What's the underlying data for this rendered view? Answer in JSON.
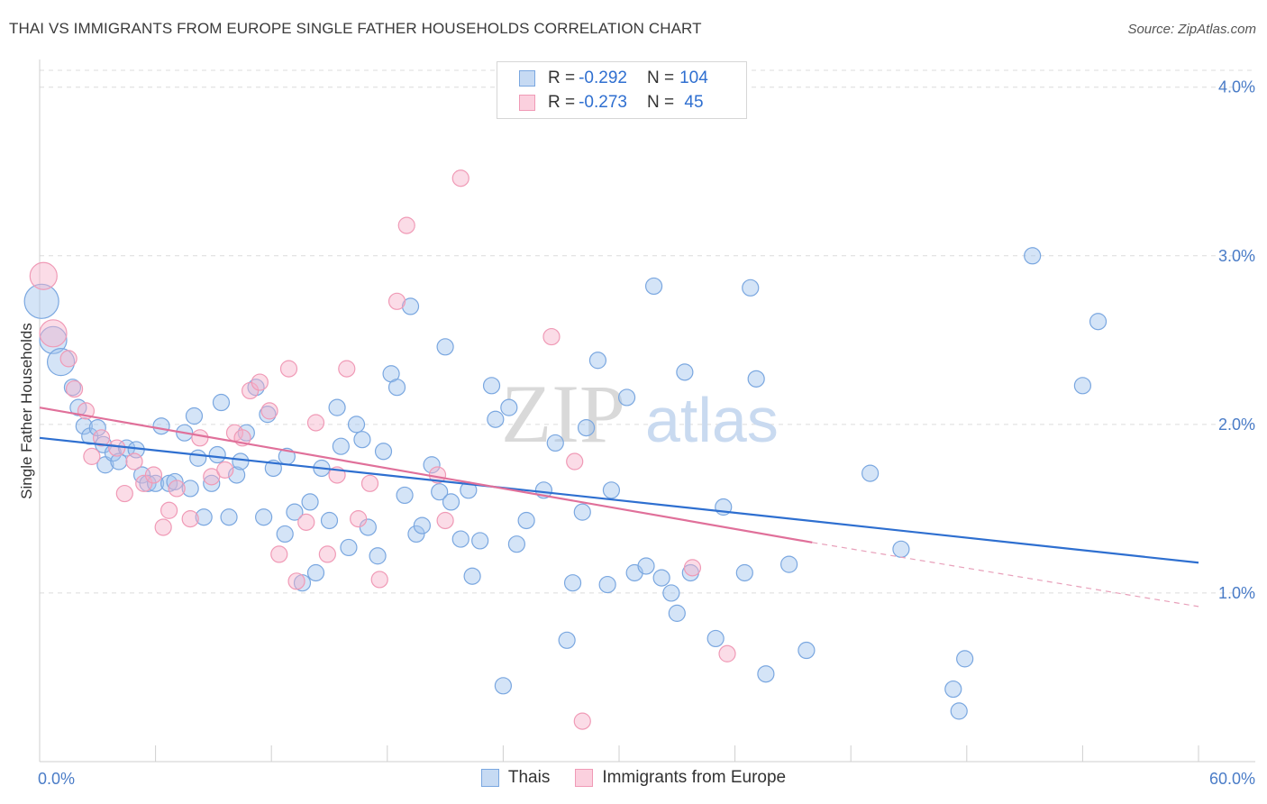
{
  "title": "THAI VS IMMIGRANTS FROM EUROPE SINGLE FATHER HOUSEHOLDS CORRELATION CHART",
  "source": "Source: ZipAtlas.com",
  "watermark": {
    "zip": "ZIP",
    "atlas": "atlas"
  },
  "legend": {
    "rows": [
      {
        "r_label": "R = ",
        "r_value": "-0.292",
        "n_label": "N = ",
        "n_value": "104",
        "color": "#7aa7e0"
      },
      {
        "r_label": "R = ",
        "r_value": "-0.273",
        "n_label": "N = ",
        "n_value": " 45",
        "color": "#f09ab6"
      }
    ]
  },
  "bottom_legend": [
    {
      "label": "Thais",
      "color": "#7aa7e0"
    },
    {
      "label": "Immigrants from Europe",
      "color": "#f09ab6"
    }
  ],
  "chart_data": {
    "type": "scatter",
    "title": "THAI VS IMMIGRANTS FROM EUROPE SINGLE FATHER HOUSEHOLDS CORRELATION CHART",
    "ylabel": "Single Father Households",
    "xlabel": "",
    "xlim": [
      0,
      60
    ],
    "ylim": [
      0,
      4.1
    ],
    "x_tick_labels": [
      {
        "x": 0,
        "label": "0.0%"
      },
      {
        "x": 60,
        "label": "60.0%"
      }
    ],
    "y_ticks": [
      {
        "y": 1,
        "label": "1.0%"
      },
      {
        "y": 2,
        "label": "2.0%"
      },
      {
        "y": 3,
        "label": "3.0%"
      },
      {
        "y": 4,
        "label": "4.0%"
      }
    ],
    "grid": "horizontal-dashed",
    "legend_position": "top-center",
    "series": [
      {
        "name": "Thais",
        "color": "#7aa7e0",
        "trend": {
          "x0": 0,
          "y0": 1.92,
          "x1": 60,
          "y1": 1.18
        },
        "points": [
          [
            0.1,
            2.73,
            3
          ],
          [
            0.7,
            2.5,
            2
          ],
          [
            1.1,
            2.37,
            2
          ],
          [
            1.7,
            2.22,
            1
          ],
          [
            2.0,
            2.1,
            1
          ],
          [
            2.3,
            1.99,
            1
          ],
          [
            2.6,
            1.93,
            1
          ],
          [
            3.0,
            1.98,
            1
          ],
          [
            3.3,
            1.88,
            1
          ],
          [
            3.4,
            1.76,
            1
          ],
          [
            3.8,
            1.83,
            1
          ],
          [
            4.1,
            1.78,
            1
          ],
          [
            4.5,
            1.86,
            1
          ],
          [
            5.0,
            1.85,
            1
          ],
          [
            5.3,
            1.7,
            1
          ],
          [
            5.6,
            1.65,
            1
          ],
          [
            6.0,
            1.65,
            1
          ],
          [
            6.3,
            1.99,
            1
          ],
          [
            6.7,
            1.65,
            1
          ],
          [
            7.0,
            1.66,
            1
          ],
          [
            7.5,
            1.95,
            1
          ],
          [
            7.8,
            1.62,
            1
          ],
          [
            8.0,
            2.05,
            1
          ],
          [
            8.2,
            1.8,
            1
          ],
          [
            8.5,
            1.45,
            1
          ],
          [
            8.9,
            1.65,
            1
          ],
          [
            9.2,
            1.82,
            1
          ],
          [
            9.4,
            2.13,
            1
          ],
          [
            9.8,
            1.45,
            1
          ],
          [
            10.2,
            1.7,
            1
          ],
          [
            10.4,
            1.78,
            1
          ],
          [
            10.7,
            1.95,
            1
          ],
          [
            11.2,
            2.22,
            1
          ],
          [
            11.6,
            1.45,
            1
          ],
          [
            11.8,
            2.06,
            1
          ],
          [
            12.1,
            1.74,
            1
          ],
          [
            12.7,
            1.35,
            1
          ],
          [
            12.8,
            1.81,
            1
          ],
          [
            13.2,
            1.48,
            1
          ],
          [
            13.6,
            1.06,
            1
          ],
          [
            14.0,
            1.54,
            1
          ],
          [
            14.3,
            1.12,
            1
          ],
          [
            14.6,
            1.74,
            1
          ],
          [
            15.0,
            1.43,
            1
          ],
          [
            15.4,
            2.1,
            1
          ],
          [
            15.6,
            1.87,
            1
          ],
          [
            16.0,
            1.27,
            1
          ],
          [
            16.4,
            2.0,
            1
          ],
          [
            16.7,
            1.91,
            1
          ],
          [
            17.0,
            1.39,
            1
          ],
          [
            17.5,
            1.22,
            1
          ],
          [
            17.8,
            1.84,
            1
          ],
          [
            18.2,
            2.3,
            1
          ],
          [
            18.5,
            2.22,
            1
          ],
          [
            18.9,
            1.58,
            1
          ],
          [
            19.2,
            2.7,
            1
          ],
          [
            19.5,
            1.35,
            1
          ],
          [
            19.8,
            1.4,
            1
          ],
          [
            20.3,
            1.76,
            1
          ],
          [
            20.7,
            1.6,
            1
          ],
          [
            21.0,
            2.46,
            1
          ],
          [
            21.3,
            1.54,
            1
          ],
          [
            21.8,
            1.32,
            1
          ],
          [
            22.2,
            1.61,
            1
          ],
          [
            22.4,
            1.1,
            1
          ],
          [
            22.8,
            1.31,
            1
          ],
          [
            23.4,
            2.23,
            1
          ],
          [
            23.6,
            2.03,
            1
          ],
          [
            24.0,
            0.45,
            1
          ],
          [
            24.3,
            2.1,
            1
          ],
          [
            24.7,
            1.29,
            1
          ],
          [
            25.2,
            1.43,
            1
          ],
          [
            26.1,
            1.61,
            1
          ],
          [
            26.7,
            1.89,
            1
          ],
          [
            27.3,
            0.72,
            1
          ],
          [
            27.6,
            1.06,
            1
          ],
          [
            28.1,
            1.48,
            1
          ],
          [
            28.3,
            1.98,
            1
          ],
          [
            28.9,
            2.38,
            1
          ],
          [
            29.4,
            1.05,
            1
          ],
          [
            29.6,
            1.61,
            1
          ],
          [
            30.4,
            2.16,
            1
          ],
          [
            30.8,
            1.12,
            1
          ],
          [
            31.4,
            1.16,
            1
          ],
          [
            31.8,
            2.82,
            1
          ],
          [
            32.2,
            1.09,
            1
          ],
          [
            32.7,
            1.0,
            1
          ],
          [
            33.0,
            0.88,
            1
          ],
          [
            33.4,
            2.31,
            1
          ],
          [
            33.7,
            1.12,
            1
          ],
          [
            35.0,
            0.73,
            1
          ],
          [
            35.4,
            1.51,
            1
          ],
          [
            36.5,
            1.12,
            1
          ],
          [
            36.8,
            2.81,
            1
          ],
          [
            37.1,
            2.27,
            1
          ],
          [
            37.6,
            0.52,
            1
          ],
          [
            38.8,
            1.17,
            1
          ],
          [
            39.7,
            0.66,
            1
          ],
          [
            43.0,
            1.71,
            1
          ],
          [
            44.6,
            1.26,
            1
          ],
          [
            47.3,
            0.43,
            1
          ],
          [
            47.6,
            0.3,
            1
          ],
          [
            47.9,
            0.61,
            1
          ],
          [
            51.4,
            3.0,
            1
          ],
          [
            54.0,
            2.23,
            1
          ],
          [
            54.8,
            2.61,
            1
          ]
        ]
      },
      {
        "name": "Immigrants from Europe",
        "color": "#f09ab6",
        "trend": {
          "x0": 0,
          "y0": 2.1,
          "x1": 40,
          "y1": 1.3,
          "dash_x1": 60,
          "dash_y1": 0.92
        },
        "points": [
          [
            0.2,
            2.88,
            2
          ],
          [
            0.7,
            2.54,
            2
          ],
          [
            1.5,
            2.39,
            1
          ],
          [
            1.8,
            2.21,
            1
          ],
          [
            2.4,
            2.08,
            1
          ],
          [
            2.7,
            1.81,
            1
          ],
          [
            3.2,
            1.92,
            1
          ],
          [
            4.0,
            1.86,
            1
          ],
          [
            4.4,
            1.59,
            1
          ],
          [
            4.9,
            1.78,
            1
          ],
          [
            5.4,
            1.65,
            1
          ],
          [
            5.9,
            1.7,
            1
          ],
          [
            6.4,
            1.39,
            1
          ],
          [
            6.7,
            1.49,
            1
          ],
          [
            7.1,
            1.62,
            1
          ],
          [
            7.8,
            1.44,
            1
          ],
          [
            8.3,
            1.92,
            1
          ],
          [
            8.9,
            1.69,
            1
          ],
          [
            9.6,
            1.73,
            1
          ],
          [
            10.1,
            1.95,
            1
          ],
          [
            10.5,
            1.92,
            1
          ],
          [
            10.9,
            2.2,
            1
          ],
          [
            11.4,
            2.25,
            1
          ],
          [
            11.9,
            2.08,
            1
          ],
          [
            12.4,
            1.23,
            1
          ],
          [
            12.9,
            2.33,
            1
          ],
          [
            13.3,
            1.07,
            1
          ],
          [
            13.8,
            1.42,
            1
          ],
          [
            14.3,
            2.01,
            1
          ],
          [
            14.9,
            1.23,
            1
          ],
          [
            15.4,
            1.7,
            1
          ],
          [
            15.9,
            2.33,
            1
          ],
          [
            16.5,
            1.44,
            1
          ],
          [
            17.1,
            1.65,
            1
          ],
          [
            17.6,
            1.08,
            1
          ],
          [
            18.5,
            2.73,
            1
          ],
          [
            19.0,
            3.18,
            1
          ],
          [
            20.6,
            1.7,
            1
          ],
          [
            21.0,
            1.43,
            1
          ],
          [
            21.8,
            3.46,
            1
          ],
          [
            26.5,
            2.52,
            1
          ],
          [
            27.7,
            1.78,
            1
          ],
          [
            28.1,
            0.24,
            1
          ],
          [
            33.8,
            1.15,
            1
          ],
          [
            35.6,
            0.64,
            1
          ]
        ]
      }
    ]
  }
}
